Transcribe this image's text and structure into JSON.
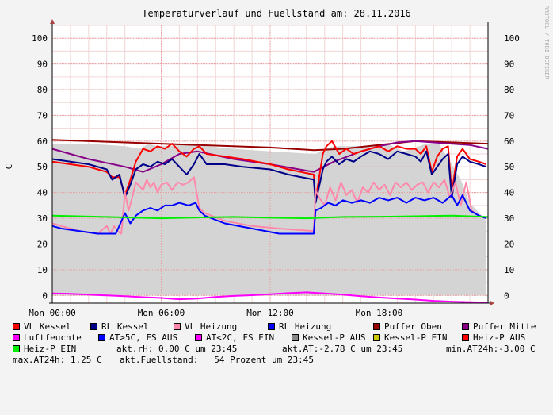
{
  "chart_data": {
    "type": "line",
    "title": "Temperaturverlauf und Fuellstand am: 28.11.2016",
    "ylabel": "C",
    "watermark": "RRDTOOL / TOBI OETIKER",
    "ylim": [
      -3,
      105
    ],
    "xlim": [
      0,
      24
    ],
    "yticks": [
      0,
      10,
      20,
      30,
      40,
      50,
      60,
      70,
      80,
      90,
      100
    ],
    "xticks": [
      {
        "x": 0,
        "label": "Mon 00:00"
      },
      {
        "x": 6,
        "label": "Mon 06:00"
      },
      {
        "x": 12,
        "label": "Mon 12:00"
      },
      {
        "x": 18,
        "label": "Mon 18:00"
      }
    ],
    "grid": true,
    "legend_position": "bottom",
    "area": {
      "name": "Kessel-P AUS",
      "color": "#d4d4d4",
      "x": [
        0,
        0.5,
        2,
        4,
        4.8,
        5.3,
        5.8,
        6.5,
        7.3,
        8.5,
        10,
        12,
        14.4,
        14.5,
        15,
        15.6,
        16.5,
        17.5,
        18.4,
        19.4,
        20.6,
        21.3,
        21.9,
        22.5,
        23.0,
        23.9
      ],
      "values": [
        59,
        59,
        59,
        58,
        57,
        59,
        58,
        58,
        59,
        58,
        57,
        56,
        55,
        55,
        57,
        58,
        58,
        58,
        59,
        56,
        59,
        59,
        52,
        45,
        36,
        29
      ]
    },
    "series": [
      {
        "name": "Puffer Oben",
        "color": "#990000",
        "x": [
          0,
          4,
          8,
          12,
          14.4,
          16,
          20,
          24
        ],
        "values": [
          60.5,
          59.5,
          58.5,
          57.5,
          56.5,
          57,
          60,
          59
        ]
      },
      {
        "name": "Puffer Mitte",
        "color": "#880088",
        "x": [
          0,
          2,
          4,
          5,
          6,
          7,
          8,
          10,
          12,
          14.4,
          15.5,
          17,
          18,
          19,
          20,
          21,
          22,
          23,
          24
        ],
        "values": [
          57,
          53,
          50,
          48,
          51,
          55,
          56,
          53,
          51,
          48,
          52,
          56,
          58,
          59.5,
          60,
          59.5,
          59,
          58.5,
          57
        ]
      },
      {
        "name": "VL Kessel",
        "color": "#ff0000",
        "x": [
          0,
          2,
          3.0,
          3.3,
          3.7,
          4.0,
          4.3,
          4.6,
          5.0,
          5.4,
          5.8,
          6.2,
          6.6,
          7.0,
          7.4,
          7.8,
          8.1,
          8.5,
          9.5,
          10.5,
          12,
          13,
          14.4,
          14.5,
          14.9,
          15.1,
          15.4,
          15.8,
          16.2,
          16.6,
          17.0,
          17.5,
          18.0,
          18.5,
          19.0,
          19.5,
          20.0,
          20.3,
          20.6,
          20.9,
          21.2,
          21.5,
          21.8,
          22.0,
          22.3,
          22.6,
          23.0,
          23.5,
          23.9
        ],
        "values": [
          52,
          50,
          48,
          46,
          46,
          39,
          45,
          52,
          57,
          56,
          58,
          57,
          59,
          56,
          54,
          57,
          58,
          55,
          54,
          53,
          51,
          49,
          47,
          37,
          55,
          58,
          60,
          55,
          57,
          55,
          56,
          57,
          58,
          56,
          58,
          57,
          57,
          55,
          58,
          48,
          54,
          57,
          58,
          40,
          54,
          57,
          53,
          52,
          51
        ]
      },
      {
        "name": "RL Kessel",
        "color": "#000088",
        "x": [
          0,
          2,
          3.0,
          3.3,
          3.7,
          4.0,
          4.3,
          4.6,
          5.0,
          5.4,
          5.8,
          6.2,
          6.6,
          7.0,
          7.4,
          7.8,
          8.1,
          8.5,
          9.5,
          10.5,
          12,
          13,
          14.4,
          14.5,
          14.9,
          15.1,
          15.4,
          15.8,
          16.2,
          16.6,
          17.0,
          17.5,
          18.0,
          18.5,
          19.0,
          19.5,
          20.0,
          20.3,
          20.6,
          20.9,
          21.2,
          21.5,
          21.8,
          22.0,
          22.3,
          22.6,
          23.0,
          23.5,
          23.9
        ],
        "values": [
          53,
          51,
          49,
          45,
          47,
          38,
          43,
          49,
          51,
          50,
          52,
          51,
          53,
          50,
          47,
          51,
          55,
          51,
          51,
          50,
          49,
          47,
          45,
          36,
          49,
          52,
          54,
          51,
          53,
          52,
          54,
          56,
          55,
          53,
          56,
          55,
          54,
          52,
          56,
          47,
          50,
          53,
          55,
          38,
          51,
          54,
          52,
          51,
          50
        ]
      },
      {
        "name": "VL Heizung",
        "color": "#ff88aa",
        "x": [
          0,
          0.5,
          1.5,
          2.5,
          3.0,
          3.2,
          3.4,
          3.6,
          3.8,
          4.0,
          4.2,
          4.4,
          4.6,
          5.0,
          5.2,
          5.4,
          5.6,
          5.8,
          6.0,
          6.3,
          6.6,
          6.9,
          7.2,
          7.5,
          7.8,
          8.1,
          8.4,
          9.5,
          11,
          12.5,
          14.4,
          14.5,
          14.7,
          15.0,
          15.3,
          15.6,
          15.9,
          16.2,
          16.5,
          16.8,
          17.1,
          17.4,
          17.7,
          18.0,
          18.3,
          18.6,
          18.9,
          19.2,
          19.5,
          19.8,
          20.1,
          20.4,
          20.7,
          21.0,
          21.3,
          21.6,
          21.9,
          22.2,
          22.5,
          22.8,
          23.1,
          23.5,
          23.9
        ],
        "values": [
          28,
          27,
          25,
          24,
          27,
          24,
          27,
          25,
          24,
          40,
          33,
          38,
          44,
          41,
          45,
          42,
          44,
          40,
          43,
          44,
          41,
          44,
          43,
          44,
          46,
          34,
          32,
          29,
          27,
          26,
          25,
          41,
          38,
          35,
          42,
          37,
          44,
          39,
          41,
          36,
          42,
          40,
          44,
          41,
          43,
          39,
          44,
          42,
          44,
          41,
          43,
          44,
          40,
          44,
          42,
          45,
          38,
          44,
          35,
          44,
          33,
          31,
          30
        ]
      },
      {
        "name": "RL Heizung",
        "color": "#0000ff",
        "x": [
          0,
          0.5,
          1.5,
          2.5,
          3.0,
          3.5,
          4.0,
          4.3,
          4.6,
          5.0,
          5.4,
          5.8,
          6.2,
          6.6,
          7.0,
          7.5,
          7.9,
          8.1,
          8.4,
          9.5,
          11,
          12.5,
          14.4,
          14.5,
          14.8,
          15.2,
          15.6,
          16.0,
          16.5,
          17.0,
          17.5,
          18.0,
          18.5,
          19.0,
          19.5,
          20.0,
          20.5,
          21.0,
          21.5,
          22.0,
          22.3,
          22.6,
          23.0,
          23.5,
          23.9
        ],
        "values": [
          27,
          26,
          25,
          24,
          24,
          24,
          32,
          28,
          31,
          33,
          34,
          33,
          35,
          35,
          36,
          35,
          36,
          33,
          31,
          28,
          26,
          24,
          24,
          33,
          34,
          36,
          35,
          37,
          36,
          37,
          36,
          38,
          37,
          38,
          36,
          38,
          37,
          38,
          36,
          39,
          35,
          39,
          33,
          31,
          30
        ]
      },
      {
        "name": "Heiz-P EIN",
        "color": "#00ee00",
        "x": [
          0,
          3,
          6,
          8,
          10,
          12,
          14,
          16,
          18,
          20,
          22,
          24
        ],
        "values": [
          31,
          30.5,
          30,
          30.3,
          30.5,
          30.2,
          30,
          30.5,
          30.6,
          30.8,
          31,
          30.5
        ]
      },
      {
        "name": "Luftfeuchte",
        "color": "#ff00ff",
        "x": [
          0,
          1,
          2,
          3,
          4,
          5,
          6,
          7,
          8,
          9,
          10,
          11,
          12,
          13,
          14,
          15,
          16,
          17,
          18,
          19,
          20,
          21,
          22,
          23,
          24
        ],
        "values": [
          0.8,
          0.6,
          0.3,
          0,
          -0.3,
          -0.7,
          -1,
          -1.5,
          -1.2,
          -0.6,
          -0.2,
          0.1,
          0.5,
          0.9,
          1.2,
          0.8,
          0.3,
          -0.3,
          -0.8,
          -1.2,
          -1.6,
          -2.1,
          -2.4,
          -2.6,
          -2.8
        ]
      },
      {
        "name": "AT>5C, FS AUS",
        "color": "#0000ff",
        "values": []
      },
      {
        "name": "AT<2C, FS EIN",
        "color": "#ff00ff",
        "values": []
      },
      {
        "name": "Kessel-P AUS",
        "color": "#888888",
        "values": []
      },
      {
        "name": "Kessel-P EIN",
        "color": "#cccc00",
        "values": []
      },
      {
        "name": "Heiz-P AUS",
        "color": "#ff0000",
        "values": []
      }
    ],
    "legend": [
      {
        "label": "VL Kessel",
        "color": "#ff0000"
      },
      {
        "label": "RL Kessel",
        "color": "#000088"
      },
      {
        "label": "VL Heizung",
        "color": "#ff88aa"
      },
      {
        "label": "RL Heizung",
        "color": "#0000ff"
      },
      {
        "label": "Puffer Oben",
        "color": "#990000"
      },
      {
        "label": "Puffer Mitte",
        "color": "#880088"
      },
      {
        "label": "Luftfeuchte",
        "color": "#ff00ff"
      },
      {
        "label": "AT>5C, FS AUS",
        "color": "#0000ff"
      },
      {
        "label": "AT<2C, FS EIN",
        "color": "#ff00ff"
      },
      {
        "label": "Kessel-P AUS",
        "color": "#888888"
      },
      {
        "label": "Kessel-P EIN",
        "color": "#cccc00"
      },
      {
        "label": "Heiz-P AUS",
        "color": "#ff0000"
      },
      {
        "label": "Heiz-P EIN",
        "color": "#00ee00"
      }
    ],
    "stats": {
      "rh": "akt.rH: 0.00 C um 23:45",
      "at": "akt.AT:-2.78 C um 23:45",
      "min": "min.AT24h:-3.00 C",
      "max": "max.AT24h: 1.25 C",
      "fuell": "akt.Fuellstand:   54 Prozent um 23:45"
    }
  }
}
